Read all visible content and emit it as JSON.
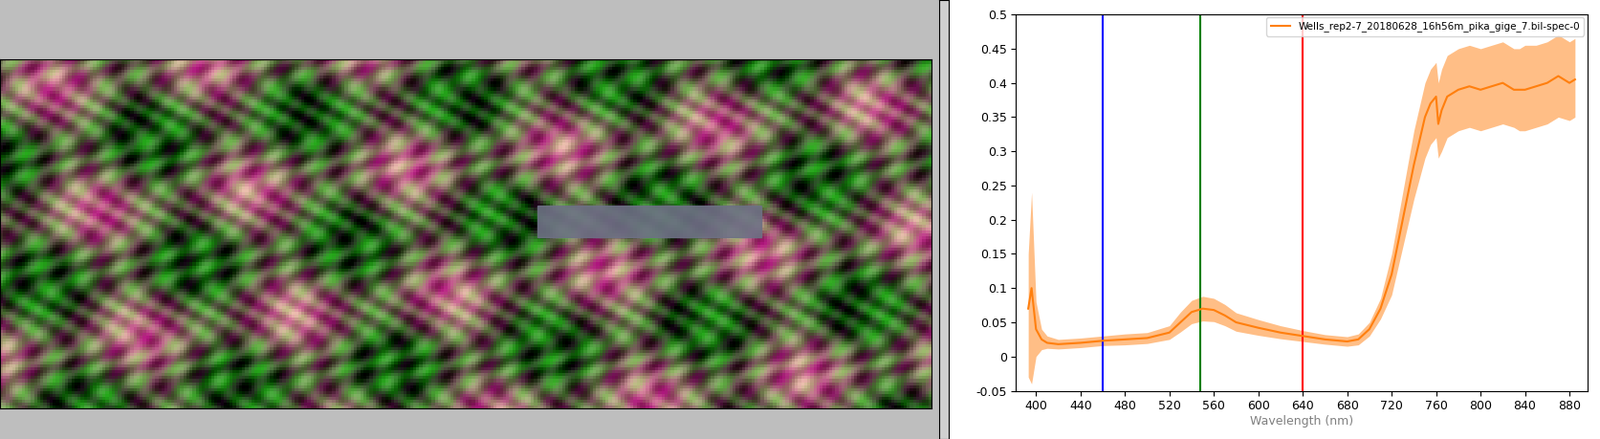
{
  "chart_data": {
    "type": "line",
    "x_label": "Wavelength (nm)",
    "x": [
      393,
      396,
      400,
      405,
      410,
      420,
      440,
      460,
      480,
      500,
      520,
      530,
      540,
      550,
      560,
      570,
      580,
      600,
      620,
      640,
      660,
      680,
      690,
      700,
      710,
      720,
      730,
      740,
      750,
      755,
      760,
      762,
      765,
      770,
      780,
      790,
      800,
      810,
      820,
      830,
      835,
      840,
      850,
      860,
      870,
      880,
      885
    ],
    "series": [
      {
        "name": "Wells_rep2-7_20180628_16h56m_pika_gige_7.bil-spec-0",
        "color": "#ff7f0e",
        "values": [
          0.07,
          0.1,
          0.04,
          0.025,
          0.02,
          0.018,
          0.02,
          0.023,
          0.025,
          0.027,
          0.035,
          0.05,
          0.065,
          0.07,
          0.068,
          0.06,
          0.05,
          0.042,
          0.035,
          0.03,
          0.025,
          0.022,
          0.025,
          0.04,
          0.07,
          0.12,
          0.2,
          0.28,
          0.35,
          0.37,
          0.38,
          0.34,
          0.36,
          0.38,
          0.39,
          0.395,
          0.39,
          0.395,
          0.4,
          0.39,
          0.39,
          0.39,
          0.395,
          0.4,
          0.41,
          0.4,
          0.405
        ],
        "upper": [
          0.15,
          0.24,
          0.08,
          0.04,
          0.03,
          0.025,
          0.027,
          0.03,
          0.033,
          0.035,
          0.045,
          0.065,
          0.082,
          0.088,
          0.085,
          0.076,
          0.064,
          0.054,
          0.045,
          0.038,
          0.032,
          0.029,
          0.033,
          0.05,
          0.085,
          0.15,
          0.24,
          0.33,
          0.4,
          0.42,
          0.43,
          0.4,
          0.42,
          0.44,
          0.45,
          0.455,
          0.45,
          0.455,
          0.46,
          0.45,
          0.45,
          0.455,
          0.455,
          0.46,
          0.47,
          0.46,
          0.465
        ],
        "lower": [
          -0.03,
          -0.04,
          0.0,
          0.01,
          0.012,
          0.011,
          0.013,
          0.016,
          0.017,
          0.019,
          0.025,
          0.036,
          0.048,
          0.052,
          0.051,
          0.045,
          0.037,
          0.031,
          0.026,
          0.022,
          0.018,
          0.015,
          0.017,
          0.03,
          0.055,
          0.09,
          0.16,
          0.23,
          0.29,
          0.31,
          0.32,
          0.29,
          0.3,
          0.32,
          0.33,
          0.335,
          0.33,
          0.335,
          0.34,
          0.335,
          0.33,
          0.33,
          0.335,
          0.34,
          0.35,
          0.345,
          0.35
        ]
      }
    ],
    "reference_lines": [
      {
        "x": 460,
        "color": "#0000ff"
      },
      {
        "x": 548,
        "color": "#008000"
      },
      {
        "x": 640,
        "color": "#ff0000"
      }
    ],
    "xlim": [
      382,
      896
    ],
    "xticks": [
      400,
      440,
      480,
      520,
      560,
      600,
      640,
      680,
      720,
      760,
      800,
      840,
      880
    ],
    "ylim": [
      -0.05,
      0.5
    ],
    "yticks": [
      -0.05,
      0,
      0.05,
      0.1,
      0.15,
      0.2,
      0.25,
      0.3,
      0.35,
      0.4,
      0.45,
      0.5
    ],
    "legend": "upper right",
    "grid": false
  }
}
